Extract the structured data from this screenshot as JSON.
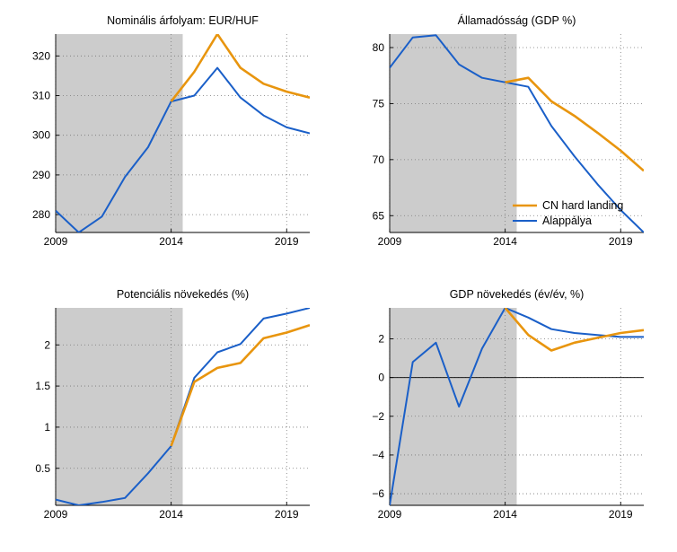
{
  "colors": {
    "hard_landing": "#e8950e",
    "baseline": "#1a5fc8",
    "shade": "#cccccc",
    "grid": "#777777"
  },
  "legend": {
    "hard_landing": "CN hard landing",
    "baseline": "Alappálya"
  },
  "chart_data": [
    {
      "type": "line",
      "title": "Nominális árfolyam: EUR/HUF",
      "xlim": [
        2009,
        2020
      ],
      "ylim": [
        275.5,
        325.5
      ],
      "xticks": [
        2009,
        2014,
        2019
      ],
      "yticks": [
        280,
        290,
        300,
        310,
        320
      ],
      "shade_x": [
        2009,
        2014.5
      ],
      "grid": "dotted",
      "legend": "none",
      "series": [
        {
          "name": "Alappálya",
          "x": [
            2009,
            2010,
            2011,
            2012,
            2013,
            2014,
            2015,
            2016,
            2017,
            2018,
            2019,
            2020
          ],
          "values": [
            281,
            275.5,
            279.5,
            289.5,
            297,
            308.5,
            310,
            317,
            309.5,
            305,
            302,
            300.5
          ]
        },
        {
          "name": "CN hard landing",
          "x": [
            2014,
            2015,
            2016,
            2017,
            2018,
            2019,
            2020
          ],
          "values": [
            308.5,
            316,
            325.5,
            317,
            313,
            311,
            309.5
          ]
        }
      ]
    },
    {
      "type": "line",
      "title": "Államadósság (GDP %)",
      "xlim": [
        2009,
        2020
      ],
      "ylim": [
        63.5,
        81.2
      ],
      "xticks": [
        2009,
        2014,
        2019
      ],
      "yticks": [
        65,
        70,
        75,
        80
      ],
      "shade_x": [
        2009,
        2014.5
      ],
      "grid": "dotted",
      "legend": "bottom-right",
      "series": [
        {
          "name": "Alappálya",
          "x": [
            2009,
            2010,
            2011,
            2012,
            2013,
            2014,
            2015,
            2016,
            2017,
            2018,
            2019,
            2020
          ],
          "values": [
            78.2,
            80.9,
            81.1,
            78.5,
            77.3,
            76.9,
            76.5,
            73,
            70.3,
            67.8,
            65.5,
            63.5
          ]
        },
        {
          "name": "CN hard landing",
          "x": [
            2014,
            2015,
            2016,
            2017,
            2018,
            2019,
            2020
          ],
          "values": [
            76.9,
            77.3,
            75.2,
            73.9,
            72.4,
            70.8,
            69
          ]
        }
      ]
    },
    {
      "type": "line",
      "title": "Potenciális növekedés (%)",
      "xlim": [
        2009,
        2020
      ],
      "ylim": [
        0.05,
        2.45
      ],
      "xticks": [
        2009,
        2014,
        2019
      ],
      "yticks": [
        0.5,
        1,
        1.5,
        2
      ],
      "ytick_labels": [
        "0.5",
        "1",
        "1.5",
        "2"
      ],
      "shade_x": [
        2009,
        2014.5
      ],
      "grid": "dotted",
      "legend": "none",
      "series": [
        {
          "name": "Alappálya",
          "x": [
            2009,
            2010,
            2011,
            2012,
            2013,
            2014,
            2015,
            2016,
            2017,
            2018,
            2019,
            2020
          ],
          "values": [
            0.12,
            0.05,
            0.09,
            0.14,
            0.44,
            0.77,
            1.6,
            1.91,
            2.01,
            2.32,
            2.38,
            2.45
          ]
        },
        {
          "name": "CN hard landing",
          "x": [
            2014,
            2015,
            2016,
            2017,
            2018,
            2019,
            2020
          ],
          "values": [
            0.77,
            1.55,
            1.72,
            1.78,
            2.08,
            2.15,
            2.24
          ]
        }
      ]
    },
    {
      "type": "line",
      "title": "GDP növekedés (év/év, %)",
      "xlim": [
        2009,
        2020
      ],
      "ylim": [
        -6.6,
        3.6
      ],
      "xticks": [
        2009,
        2014,
        2019
      ],
      "yticks": [
        -6,
        -4,
        -2,
        0,
        2
      ],
      "ytick_labels": [
        "−6",
        "−4",
        "−2",
        "0",
        "2"
      ],
      "shade_x": [
        2009,
        2014.5
      ],
      "zero_line": true,
      "grid": "dotted",
      "legend": "none",
      "series": [
        {
          "name": "Alappálya",
          "x": [
            2009,
            2010,
            2011,
            2012,
            2013,
            2014,
            2015,
            2016,
            2017,
            2018,
            2019,
            2020
          ],
          "values": [
            -6.6,
            0.8,
            1.8,
            -1.5,
            1.5,
            3.6,
            3.1,
            2.5,
            2.3,
            2.2,
            2.1,
            2.1
          ]
        },
        {
          "name": "CN hard landing",
          "x": [
            2014,
            2015,
            2016,
            2017,
            2018,
            2019,
            2020
          ],
          "values": [
            3.6,
            2.2,
            1.4,
            1.8,
            2.05,
            2.3,
            2.45
          ]
        }
      ]
    }
  ]
}
